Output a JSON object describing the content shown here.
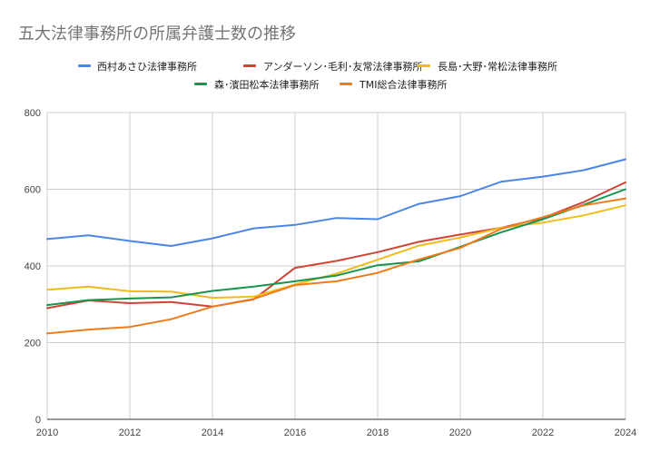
{
  "chart_data": {
    "type": "line",
    "title": "五大法律事務所の所属弁護士数の推移",
    "xlabel": "",
    "ylabel": "",
    "x": [
      2010,
      2011,
      2012,
      2013,
      2014,
      2015,
      2016,
      2017,
      2018,
      2019,
      2020,
      2021,
      2022,
      2023,
      2024
    ],
    "xlim": [
      2010,
      2024
    ],
    "ylim": [
      0,
      800
    ],
    "x_ticks": [
      "2010",
      "2012",
      "2014",
      "2016",
      "2018",
      "2020",
      "2022",
      "2024"
    ],
    "y_ticks": [
      "0",
      "200",
      "400",
      "600",
      "800"
    ],
    "grid": true,
    "legend_position": "top",
    "series": [
      {
        "name": "西村あさひ法律事務所",
        "color": "#4a86e8",
        "values": [
          470,
          480,
          465,
          452,
          472,
          498,
          507,
          525,
          522,
          562,
          582,
          620,
          633,
          650,
          678
        ]
      },
      {
        "name": "アンダーソン･毛利･友常法律事務所",
        "color": "#d04436",
        "values": [
          290,
          310,
          303,
          306,
          294,
          313,
          395,
          413,
          436,
          463,
          482,
          500,
          525,
          567,
          618
        ]
      },
      {
        "name": "長島･大野･常松法律事務所",
        "color": "#f1bb1b",
        "values": [
          338,
          346,
          334,
          333,
          317,
          320,
          352,
          380,
          416,
          453,
          474,
          500,
          513,
          532,
          558
        ]
      },
      {
        "name": "森･濱田松本法律事務所",
        "color": "#17964f",
        "values": [
          298,
          311,
          315,
          318,
          335,
          346,
          360,
          375,
          402,
          412,
          450,
          488,
          522,
          560,
          600
        ]
      },
      {
        "name": "TMI総合法律事務所",
        "color": "#f07b1b",
        "values": [
          224,
          234,
          241,
          261,
          294,
          314,
          350,
          360,
          382,
          417,
          447,
          497,
          527,
          558,
          576
        ]
      }
    ]
  }
}
